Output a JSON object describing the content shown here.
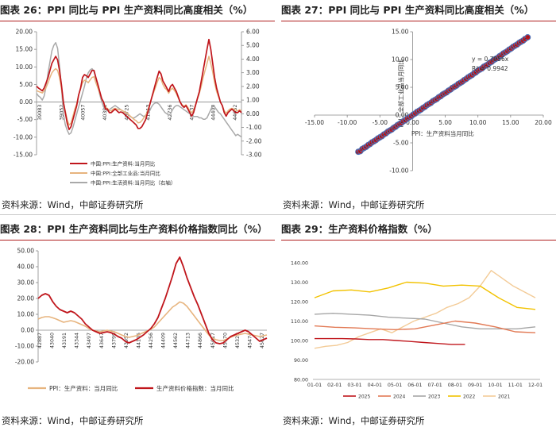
{
  "panels": [
    {
      "title": "图表 26：PPI 同比与 PPI 生产资料同比高度相关（%）",
      "source": "资料来源：Wind，中邮证券研究所"
    },
    {
      "title": "图表 27：PPI 同比与 PPI 生产资料同比高度相关（%）",
      "source": "资料来源：Wind，中邮证券研究所"
    },
    {
      "title": "图表 28：PPI 生产资料同比与生产资料价格指数同比（%）",
      "source": "资料来源：Wind，中邮证券研究所"
    },
    {
      "title": "图表 29：生产资料价格指数（%）",
      "source": "资料来源：Wind，中邮证券研究所"
    }
  ],
  "chart_data": [
    {
      "type": "line",
      "left_ticks": [
        "20.00",
        "15.00",
        "10.00",
        "5.00",
        "0.00",
        "-5.00",
        "-10.00",
        "-15.00"
      ],
      "right_ticks": [
        "6.00",
        "5.00",
        "4.00",
        "3.00",
        "2.00",
        "1.00",
        "0.00",
        "-1.00",
        "-2.00",
        "-3.00"
      ],
      "x_ticks": [
        "39083",
        "39052",
        "40057",
        "40391",
        "40725",
        "41913",
        "42736",
        "43737",
        "44409",
        "44652"
      ],
      "ylim": [
        -15,
        20
      ],
      "y2lim": [
        -3,
        6
      ],
      "legend": [
        "中国:PPI:生产资料:当月同比",
        "中国:PPI:全部工业品:当月同比",
        "中国:PPI:生活资料:当月同比（右轴）"
      ],
      "colors": [
        "#c0161c",
        "#e7b47e",
        "#a9a9a9"
      ],
      "series": [
        {
          "name": "中国:PPI:生产资料:当月同比",
          "axis": "left",
          "values": [
            4.5,
            4,
            3.6,
            3.2,
            4,
            5.5,
            7,
            9,
            11,
            12,
            13,
            12,
            9,
            5,
            0,
            -3,
            -6,
            -7.8,
            -7,
            -5,
            -3,
            -1,
            2,
            4,
            7,
            7.8,
            7.5,
            7,
            8,
            9,
            9,
            7,
            5,
            3,
            1,
            0,
            -2,
            -2,
            -3,
            -3,
            -2.5,
            -2,
            -2.5,
            -3,
            -2.8,
            -3,
            -3.5,
            -4,
            -4.5,
            -5,
            -5.5,
            -6,
            -6.5,
            -7.5,
            -7.5,
            -7,
            -6,
            -5,
            -3,
            -1,
            1,
            3,
            5,
            7,
            8.8,
            8,
            6,
            5,
            4,
            3,
            4.5,
            5,
            4,
            3,
            1.5,
            0,
            -1,
            -1.5,
            -1,
            -2,
            -3,
            -4,
            -3,
            -1,
            1,
            3,
            6,
            9,
            12,
            15,
            17.8,
            15,
            11,
            7,
            4,
            2,
            0,
            -1,
            -3,
            -4,
            -3,
            -2.5,
            -2,
            -2.5,
            -3,
            -3,
            -2.5,
            -3
          ]
        },
        {
          "name": "中国:PPI:全部工业品:当月同比",
          "axis": "left",
          "values": [
            3.3,
            3,
            2.8,
            2.6,
            3.2,
            4.2,
            5.5,
            7,
            8.3,
            9,
            9.5,
            9,
            7,
            4,
            0,
            -2.5,
            -5,
            -6.5,
            -6,
            -4,
            -2,
            -0.5,
            2,
            3.8,
            5.5,
            6.2,
            6,
            5.5,
            6.3,
            7,
            7.2,
            5.5,
            4,
            2.5,
            1,
            0,
            -1.5,
            -1.8,
            -2.5,
            -2.5,
            -2,
            -1.8,
            -2,
            -2.2,
            -2.2,
            -2.5,
            -2.8,
            -3,
            -3.5,
            -4,
            -4.5,
            -5,
            -5.3,
            -5.9,
            -5.8,
            -5.3,
            -4.5,
            -3.8,
            -2.5,
            -0.8,
            1,
            2.5,
            4,
            5.6,
            7,
            6.5,
            5,
            4,
            3.5,
            2.5,
            3.5,
            4,
            3.3,
            2.4,
            1.2,
            0,
            -0.8,
            -1.2,
            -0.8,
            -1.5,
            -2.5,
            -3,
            -2.3,
            -0.8,
            0.8,
            2.5,
            4.5,
            7,
            9,
            11,
            13,
            11,
            8.5,
            5.5,
            3,
            1.5,
            0,
            -1,
            -2.5,
            -3.2,
            -2.5,
            -2,
            -1.8,
            -2,
            -2.3,
            -2.5,
            -2.2,
            -2.5
          ]
        },
        {
          "name": "中国:PPI:生活资料:当月同比（右轴）",
          "axis": "right",
          "values": [
            1.5,
            1.3,
            1.2,
            1,
            1.3,
            2,
            3,
            3.8,
            4.6,
            5,
            5.2,
            4.8,
            3.5,
            2,
            0,
            -0.8,
            -1.2,
            -1.5,
            -1.4,
            -1,
            -0.5,
            0,
            0.5,
            1,
            1.5,
            2,
            2.6,
            3,
            3.2,
            3.3,
            3.1,
            2.6,
            2,
            1.4,
            0.9,
            0.5,
            0.3,
            0.2,
            0.3,
            0.4,
            0.5,
            0.6,
            0.5,
            0.4,
            0.3,
            0.2,
            0.1,
            0,
            -0.1,
            -0.2,
            -0.3,
            -0.3,
            -0.2,
            -0.1,
            0,
            -0.1,
            -0.2,
            -0.1,
            0,
            0.2,
            0.5,
            0.7,
            0.8,
            0.8,
            0.7,
            0.5,
            0.3,
            0.1,
            0,
            -0.1,
            0,
            0.3,
            0.5,
            0.6,
            0.6,
            0.5,
            0.4,
            0.3,
            0.2,
            0.1,
            0,
            -0.1,
            -0.2,
            -0.2,
            -0.2,
            -0.3,
            -0.3,
            -0.4,
            -0.4,
            -0.3,
            0,
            0.3,
            0.6,
            0.5,
            0.3,
            0.1,
            0,
            -0.2,
            -0.4,
            -0.6,
            -0.8,
            -1,
            -1.2,
            -1.4,
            -1.6,
            -1.5,
            -1.6,
            -1.7
          ]
        }
      ]
    },
    {
      "type": "scatter",
      "x_ticks": [
        "-15.00",
        "-10.00",
        "-5.00",
        "0.00",
        "5.00",
        "10.00",
        "15.00",
        "20.00"
      ],
      "y_ticks": [
        "15.00",
        "10.00",
        "5.00",
        "0.00",
        "-5.00",
        "-10.00"
      ],
      "xlim": [
        -15,
        20
      ],
      "ylim": [
        -10,
        15
      ],
      "xlabel": "PPI：生产资料当月同比",
      "ylabel": "PPI：全部工业品当月同比",
      "equation": "y = 0.7956x",
      "r2": "R² = 0.9942",
      "slope": 0.7956,
      "x": [
        -8.3,
        -8,
        -7.7,
        -7.4,
        -7.1,
        -6.8,
        -6.5,
        -6.2,
        -5.9,
        -5.6,
        -5.3,
        -5,
        -4.7,
        -4.4,
        -4.1,
        -3.8,
        -3.5,
        -3.2,
        -2.9,
        -2.6,
        -2.3,
        -2,
        -1.7,
        -1.4,
        -1.1,
        -0.8,
        -0.5,
        -0.2,
        0.1,
        0.4,
        0.7,
        1,
        1.3,
        1.6,
        1.9,
        2.2,
        2.5,
        2.8,
        3.1,
        3.4,
        3.7,
        4,
        4.3,
        4.6,
        4.9,
        5.2,
        5.5,
        5.8,
        6.1,
        6.4,
        6.7,
        7,
        7.3,
        7.6,
        7.9,
        8.2,
        8.5,
        8.8,
        9.1,
        9.4,
        9.7,
        10,
        10.3,
        10.6,
        10.9,
        11.2,
        11.5,
        11.8,
        12.1,
        12.4,
        12.7,
        13,
        13.3,
        13.6,
        13.9,
        14.2,
        14.5,
        14.8,
        15.1,
        15.4,
        15.7,
        16,
        16.3,
        16.6,
        16.9,
        17.2,
        17.6
      ],
      "y": [
        -6.6,
        -6.5,
        -6.1,
        -5.9,
        -5.7,
        -5.4,
        -5.2,
        -4.9,
        -4.7,
        -4.5,
        -4.2,
        -4,
        -3.8,
        -3.5,
        -3.3,
        -3,
        -2.8,
        -2.6,
        -2.3,
        -2.1,
        -1.8,
        -1.6,
        -1.4,
        -1.1,
        -0.9,
        -0.6,
        -0.4,
        -0.2,
        0.1,
        0.3,
        0.6,
        0.8,
        1,
        1.3,
        1.5,
        1.8,
        2,
        2.2,
        2.5,
        2.7,
        2.9,
        3.2,
        3.4,
        3.7,
        3.9,
        4.1,
        4.4,
        4.6,
        4.9,
        5.1,
        5.3,
        5.6,
        5.8,
        6,
        6.3,
        6.5,
        6.8,
        7,
        7.2,
        7.5,
        7.7,
        8,
        8.2,
        8.4,
        8.7,
        8.9,
        9.1,
        9.4,
        9.6,
        9.9,
        10.1,
        10.3,
        10.6,
        10.8,
        11.1,
        11.3,
        11.5,
        11.8,
        12,
        12.3,
        12.5,
        12.7,
        13,
        13.2,
        13.4,
        13.7,
        14
      ]
    },
    {
      "type": "line",
      "y_ticks": [
        "50.00",
        "40.00",
        "30.00",
        "20.00",
        "10.00",
        "0.00",
        "-10.00",
        "-20.00"
      ],
      "x_ticks": [
        "42887",
        "43040",
        "43191",
        "43344",
        "43497",
        "43647",
        "43799",
        "43952",
        "44105",
        "44256",
        "44409",
        "44562",
        "44713",
        "44866",
        "45017",
        "45170",
        "45323",
        "45474",
        "45627"
      ],
      "ylim": [
        -20,
        50
      ],
      "legend": [
        "PPI：生产资料：当月同比",
        "生产资料价格指数：当月同比"
      ],
      "colors": [
        "#e7b47e",
        "#c0161c"
      ],
      "series": [
        {
          "name": "PPI：生产资料：当月同比",
          "values": [
            7,
            8,
            8.5,
            8.5,
            7.8,
            7,
            6,
            5,
            5.5,
            6,
            5.5,
            4.5,
            3.5,
            2.5,
            1,
            0,
            -0.5,
            -1,
            -0.5,
            0,
            -0.5,
            -1,
            -2,
            -3,
            -4,
            -4.5,
            -4,
            -3.5,
            -2.5,
            -1.5,
            -0.5,
            0.5,
            2,
            4.5,
            7,
            9.5,
            12,
            14.5,
            16,
            17.8,
            17,
            15,
            12,
            9,
            6,
            3,
            0,
            -3,
            -5,
            -6,
            -6.5,
            -6.5,
            -5.5,
            -4.5,
            -3.5,
            -3,
            -2.5,
            -2,
            -2.5,
            -3,
            -3.5,
            -4,
            -3.5,
            -3
          ]
        },
        {
          "name": "生产资料价格指数：当月同比",
          "values": [
            20,
            22,
            23,
            22,
            18,
            15,
            13,
            12,
            11,
            12,
            11,
            9,
            7,
            4,
            2,
            0,
            -1,
            -2,
            -1.5,
            -1,
            -1.5,
            -2.5,
            -4,
            -5,
            -7,
            -8,
            -7,
            -6,
            -4.5,
            -3,
            -1,
            1,
            4,
            8,
            14,
            20,
            27,
            34,
            42,
            46,
            40,
            33,
            27,
            21,
            16,
            10,
            4,
            -2,
            -6,
            -8,
            -8.5,
            -8,
            -6,
            -4,
            -3,
            -2,
            -1,
            0,
            -1,
            -3,
            -5,
            -7,
            -6,
            -5
          ]
        }
      ]
    },
    {
      "type": "line",
      "y_ticks": [
        "140.00",
        "130.00",
        "120.00",
        "110.00",
        "100.00",
        "90.00",
        "80.00"
      ],
      "x_ticks": [
        "01-01",
        "02-01",
        "03-01",
        "04-01",
        "05-01",
        "06-01",
        "07-01",
        "08-01",
        "09-01",
        "10-01",
        "11-01",
        "12-01"
      ],
      "ylim": [
        80,
        140
      ],
      "legend": [
        "2025",
        "2024",
        "2023",
        "2022",
        "2021"
      ],
      "colors": [
        "#c0161c",
        "#e27a55",
        "#a6a6a6",
        "#f2c200",
        "#f3cb97"
      ],
      "series": [
        {
          "name": "2025",
          "values": [
            101,
            101,
            101,
            100.8,
            100.5,
            100.5,
            100,
            99.5,
            99,
            98.5,
            98,
            98
          ]
        },
        {
          "name": "2024",
          "values": [
            107.5,
            106.8,
            106.5,
            106,
            105.6,
            106,
            108,
            110,
            109,
            107,
            104.5,
            104
          ]
        },
        {
          "name": "2023",
          "values": [
            113.5,
            114,
            113.5,
            113,
            112,
            111.5,
            111,
            109,
            107,
            106,
            106,
            106,
            107
          ]
        },
        {
          "name": "2022",
          "values": [
            122,
            125.5,
            126,
            125,
            127,
            130,
            129.5,
            128,
            128.5,
            128,
            122,
            117,
            116
          ]
        },
        {
          "name": "2021",
          "values": [
            96,
            97,
            97.5,
            99,
            102,
            104,
            106,
            104,
            107,
            110,
            112,
            114,
            117,
            119,
            122,
            128,
            136,
            132,
            128,
            125,
            122
          ]
        }
      ]
    }
  ]
}
